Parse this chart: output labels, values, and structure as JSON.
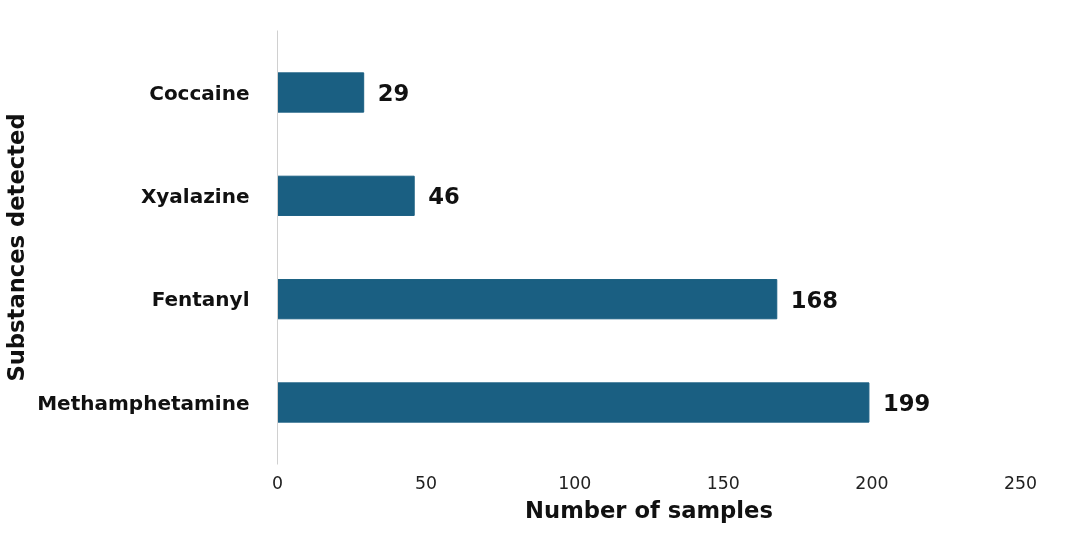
{
  "chart_data": {
    "type": "bar",
    "orientation": "horizontal",
    "categories": [
      "Coccaine",
      "Xyalazine",
      "Fentanyl",
      "Methamphetamine"
    ],
    "values": [
      29,
      46,
      168,
      199
    ],
    "color": "#1a5f82",
    "xlim": [
      0,
      250
    ],
    "xticks": [
      0,
      50,
      100,
      150,
      200,
      250
    ],
    "xlabel": "Number of samples",
    "ylabel": "Substances detected",
    "data_labels": true,
    "grid": false
  }
}
